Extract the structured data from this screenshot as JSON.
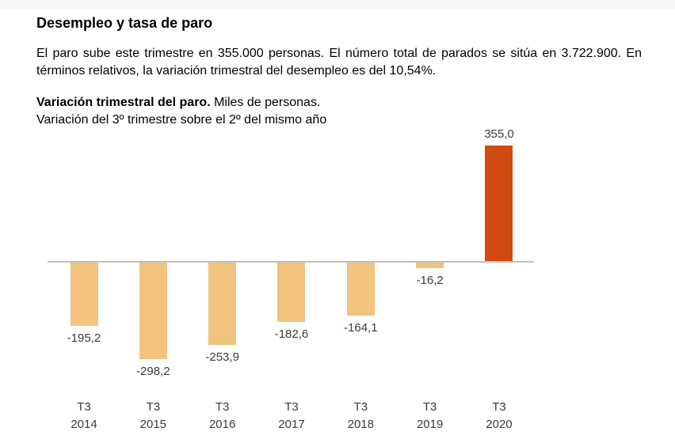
{
  "page": {
    "title": "Desempleo y tasa de paro",
    "intro": "El paro sube este trimestre en 355.000 personas. El número total de parados se sitúa en 3.722.900. En términos relativos, la variación trimestral del desempleo es del 10,54%."
  },
  "chart_data": {
    "type": "bar",
    "title_bold": "Variación trimestral del paro.",
    "title_rest": "Miles de personas.",
    "subtitle": "Variación del 3º trimestre sobre el 2º del mismo año",
    "categories": [
      {
        "quarter": "T3",
        "year": "2014"
      },
      {
        "quarter": "T3",
        "year": "2015"
      },
      {
        "quarter": "T3",
        "year": "2016"
      },
      {
        "quarter": "T3",
        "year": "2017"
      },
      {
        "quarter": "T3",
        "year": "2018"
      },
      {
        "quarter": "T3",
        "year": "2019"
      },
      {
        "quarter": "T3",
        "year": "2020"
      }
    ],
    "values": [
      -195.2,
      -298.2,
      -253.9,
      -182.6,
      -164.1,
      -16.2,
      355.0
    ],
    "value_labels": [
      "-195,2",
      "-298,2",
      "-253,9",
      "-182,6",
      "-164,1",
      "-16,2",
      "355,0"
    ],
    "xlabel": "",
    "ylabel": "",
    "ylim": [
      -320,
      380
    ],
    "grid": false,
    "legend": false,
    "colors": {
      "negative_bar": "#F2C37C",
      "positive_bar": "#D04A12",
      "axis_line": "#BFBFBF",
      "label_text": "#3A3A3A"
    }
  }
}
